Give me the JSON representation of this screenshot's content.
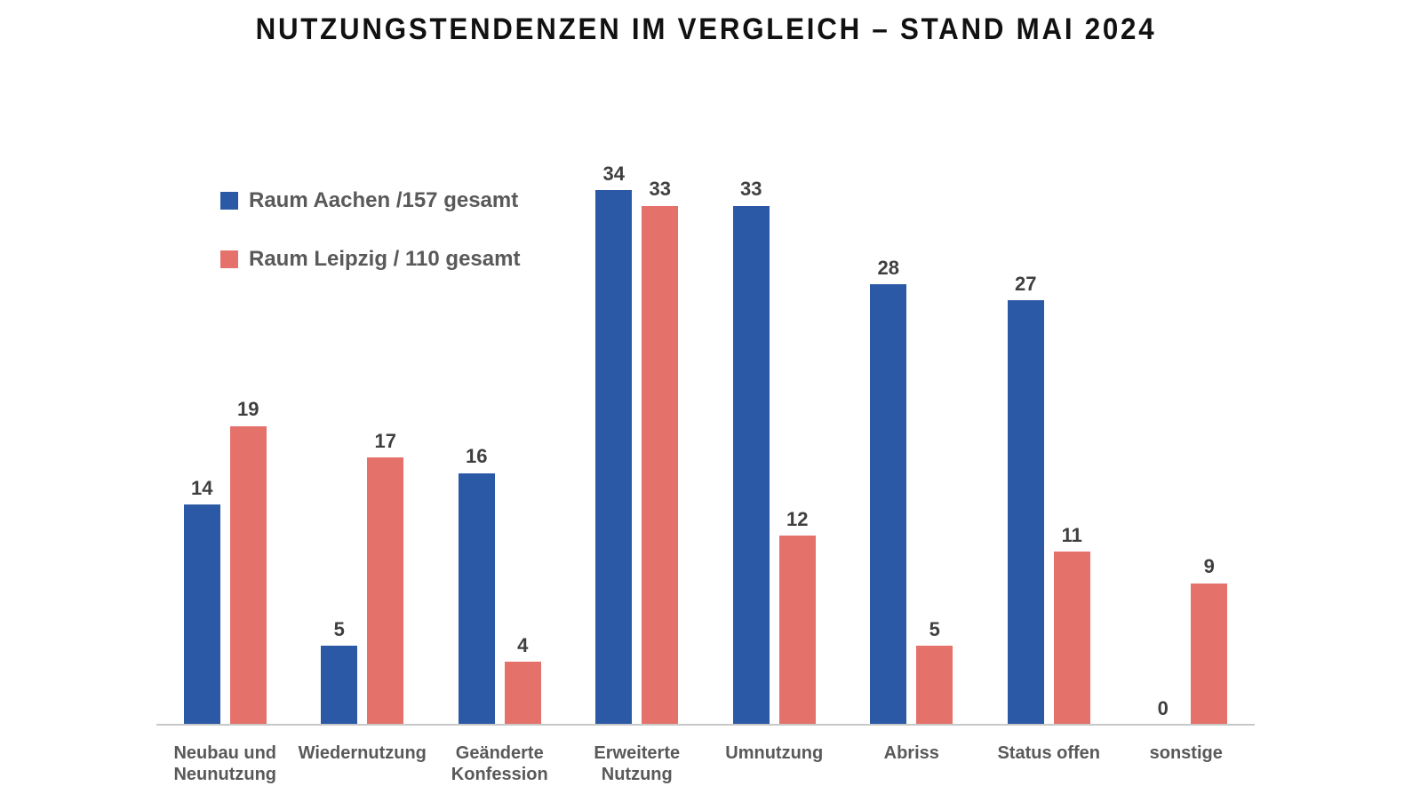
{
  "title": "NUTZUNGSTENDENZEN IM VERGLEICH – STAND MAI 2024",
  "legend": {
    "items": [
      {
        "label": "Raum Aachen /157 gesamt",
        "color": "#2B59A5"
      },
      {
        "label": "Raum Leipzig / 110 gesamt",
        "color": "#E5716B"
      }
    ]
  },
  "chart_data": {
    "type": "bar",
    "title": "NUTZUNGSTENDENZEN IM VERGLEICH – STAND MAI 2024",
    "categories": [
      "Neubau und Neunutzung",
      "Wiedernutzung",
      "Geänderte Konfession",
      "Erweiterte Nutzung",
      "Umnutzung",
      "Abriss",
      "Status offen",
      "sonstige"
    ],
    "series": [
      {
        "name": "Raum Aachen /157 gesamt",
        "color": "#2B59A5",
        "values": [
          14,
          5,
          16,
          34,
          33,
          28,
          27,
          0
        ]
      },
      {
        "name": "Raum Leipzig / 110 gesamt",
        "color": "#E5716B",
        "values": [
          19,
          17,
          4,
          33,
          12,
          5,
          11,
          9
        ]
      }
    ],
    "xlabel": "",
    "ylabel": "",
    "ylim": [
      0,
      36.7
    ],
    "grid": false,
    "legend_position": "upper-left",
    "data_labels": true
  },
  "styles": {
    "value_label_color": "#3F3F3F",
    "axis_text_color": "#595959",
    "axis_line_color": "#C8C8C8",
    "background": "#FFFFFF"
  }
}
